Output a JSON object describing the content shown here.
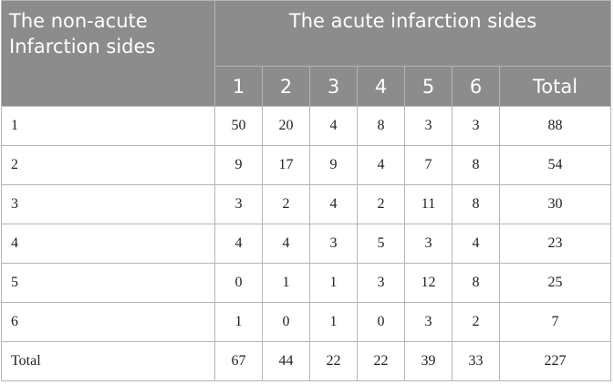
{
  "header": {
    "row_header": [
      "The non-acute",
      "Infarction sides"
    ],
    "group_title": "The acute infarction sides",
    "columns": [
      "1",
      "2",
      "3",
      "4",
      "5",
      "6",
      "Total"
    ]
  },
  "table": {
    "rows": [
      {
        "label": "1",
        "cells": [
          50,
          20,
          4,
          8,
          3,
          3,
          88
        ]
      },
      {
        "label": "2",
        "cells": [
          9,
          17,
          9,
          4,
          7,
          8,
          54
        ]
      },
      {
        "label": "3",
        "cells": [
          3,
          2,
          4,
          2,
          11,
          8,
          30
        ]
      },
      {
        "label": "4",
        "cells": [
          4,
          4,
          3,
          5,
          3,
          4,
          23
        ]
      },
      {
        "label": "5",
        "cells": [
          0,
          1,
          1,
          3,
          12,
          8,
          25
        ]
      },
      {
        "label": "6",
        "cells": [
          1,
          0,
          1,
          0,
          3,
          2,
          7
        ]
      },
      {
        "label": "Total",
        "cells": [
          67,
          44,
          22,
          22,
          39,
          33,
          227
        ]
      }
    ]
  }
}
